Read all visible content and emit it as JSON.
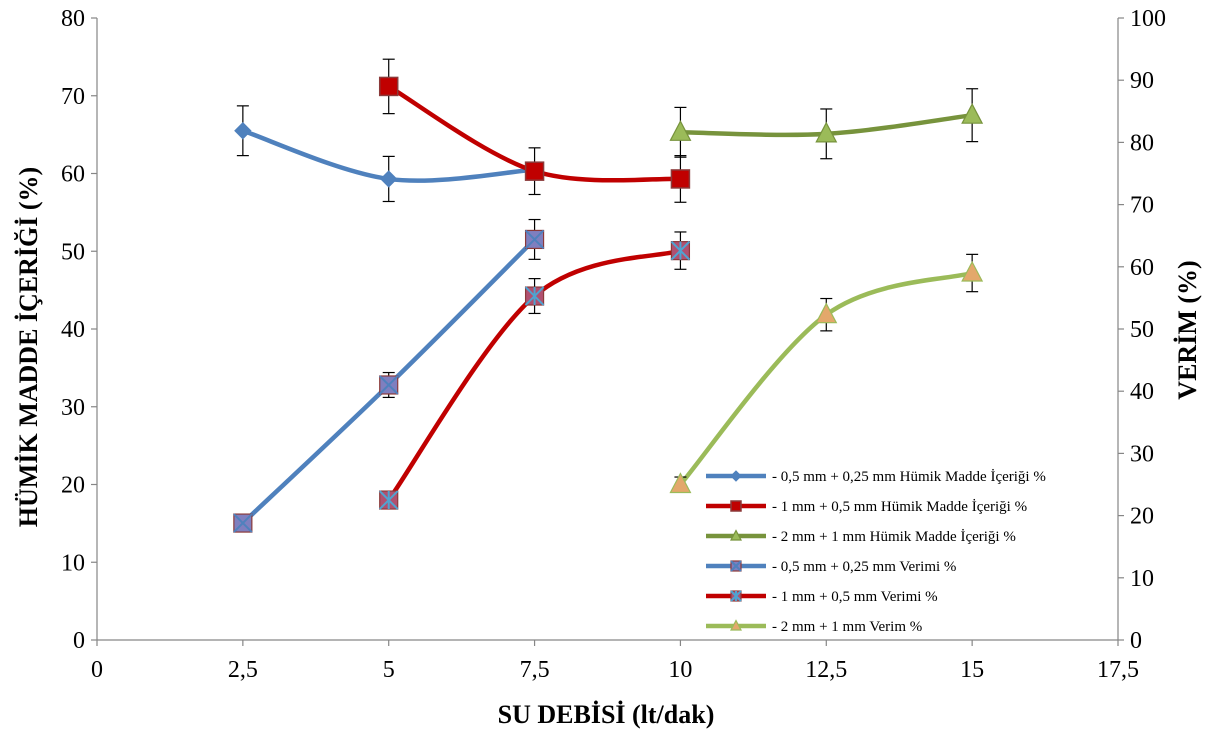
{
  "chart_data": {
    "type": "line",
    "xlabel": "SU DEBİSİ  (lt/dak)",
    "ylabel_left": "HÜMİK MADDE İÇERİĞİ (%)",
    "ylabel_right": "VERİM (%)",
    "xlim": [
      0,
      17.5
    ],
    "xticks": [
      "0",
      "2,5",
      "5",
      "7,5",
      "10",
      "12,5",
      "15",
      "17,5"
    ],
    "ylim_left": [
      0,
      80
    ],
    "yticks_left": [
      "0",
      "10",
      "20",
      "30",
      "40",
      "50",
      "60",
      "70",
      "80"
    ],
    "ylim_right": [
      0,
      100
    ],
    "yticks_right": [
      "0",
      "10",
      "20",
      "30",
      "40",
      "50",
      "60",
      "70",
      "80",
      "90",
      "100"
    ],
    "grid": false,
    "legend_position": "bottom-right",
    "series": [
      {
        "name": "- 0,5 mm + 0,25 mm Hümik Madde İçeriği %",
        "axis": "left",
        "marker": "diamond",
        "color": "#4F81BD",
        "marker_fill": "#4F81BD",
        "x": [
          2.5,
          5,
          7.5
        ],
        "y": [
          65.5,
          59.3,
          60.5
        ],
        "err": [
          3.2,
          2.9,
          0.8
        ]
      },
      {
        "name": "- 1 mm + 0,5 mm Hümik Madde İçeriği %",
        "axis": "left",
        "marker": "square",
        "color": "#C00000",
        "marker_fill": "#C00000",
        "x": [
          5,
          7.5,
          10
        ],
        "y": [
          71.2,
          60.3,
          59.3
        ],
        "err": [
          3.5,
          3.0,
          3.0
        ]
      },
      {
        "name": "- 2 mm + 1 mm Hümik Madde İçeriği %",
        "axis": "left",
        "marker": "triangle",
        "color": "#77933C",
        "marker_fill": "#9BBB59",
        "x": [
          10,
          12.5,
          15
        ],
        "y": [
          65.3,
          65.1,
          67.5
        ],
        "err": [
          3.2,
          3.2,
          3.4
        ]
      },
      {
        "name": "- 0,5 mm + 0,25 mm Verimi %",
        "axis": "right",
        "marker": "x-square",
        "color": "#4F81BD",
        "marker_fill": "#7F7FBF",
        "x": [
          2.5,
          5,
          7.5
        ],
        "y": [
          18.8,
          41.0,
          64.4
        ],
        "err": [
          0,
          2.0,
          3.2
        ]
      },
      {
        "name": "- 1 mm + 0,5 mm Verimi %",
        "axis": "right",
        "marker": "star",
        "color": "#C00000",
        "marker_fill": "#B05070",
        "x": [
          5,
          7.5,
          10
        ],
        "y": [
          22.5,
          55.3,
          62.6
        ],
        "err": [
          1.3,
          2.8,
          3.0
        ]
      },
      {
        "name": "- 2 mm + 1 mm Verim %",
        "axis": "right",
        "marker": "triangle",
        "color": "#9BBB59",
        "marker_fill": "#E3A86B",
        "x": [
          10,
          12.5,
          15
        ],
        "y": [
          25.0,
          52.3,
          59.0
        ],
        "err": [
          1.2,
          2.6,
          3.0
        ]
      }
    ]
  }
}
